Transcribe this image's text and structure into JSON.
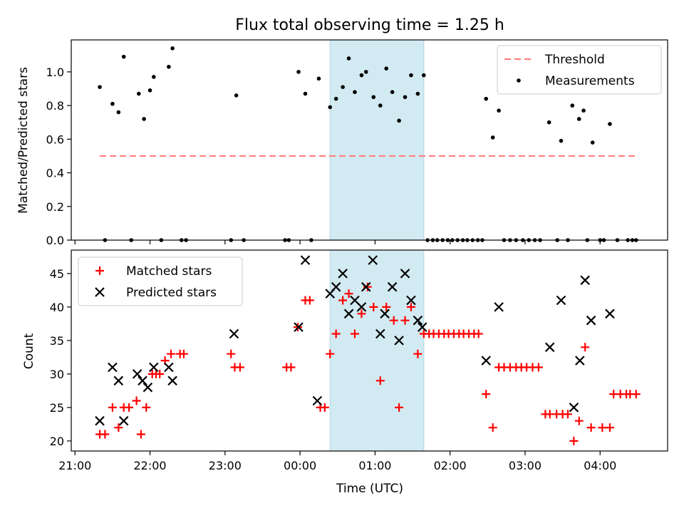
{
  "title": "Flux total observing time = 1.25 h",
  "x_axis": {
    "label": "Time (UTC)",
    "ticks": [
      "21:00",
      "22:00",
      "23:00",
      "00:00",
      "01:00",
      "02:00",
      "03:00",
      "04:00"
    ]
  },
  "colors": {
    "threshold": "#ff8080",
    "measurements": "#000000",
    "matched": "#ff0000",
    "predicted": "#000000",
    "observing_window": "#add8e6"
  },
  "chart_data": [
    {
      "type": "scatter",
      "ylabel": "Matched/Predicted stars",
      "xlim": [
        20.95,
        28.9
      ],
      "ylim": [
        0,
        1.19
      ],
      "yticks": [
        "0.0",
        "0.2",
        "0.4",
        "0.6",
        "0.8",
        "1.0"
      ],
      "grid": false,
      "legend_position": "top-right",
      "shaded_span": [
        24.4,
        25.65
      ],
      "series": [
        {
          "name": "Threshold",
          "style": "dashed-line",
          "x": [
            21.33,
            28.47
          ],
          "y": [
            0.5,
            0.5
          ]
        },
        {
          "name": "Measurements",
          "style": "dot",
          "x": [
            21.33,
            21.4,
            21.5,
            21.58,
            21.65,
            21.75,
            21.85,
            21.92,
            22.0,
            22.05,
            22.15,
            22.25,
            22.3,
            22.42,
            22.48,
            23.08,
            23.15,
            23.25,
            23.8,
            23.85,
            23.98,
            24.07,
            24.15,
            24.25,
            24.4,
            24.48,
            24.57,
            24.65,
            24.73,
            24.82,
            24.88,
            24.98,
            25.07,
            25.15,
            25.23,
            25.32,
            25.4,
            25.48,
            25.57,
            25.65,
            25.7,
            25.77,
            25.83,
            25.9,
            25.97,
            26.03,
            26.1,
            26.17,
            26.23,
            26.3,
            26.37,
            26.43,
            26.48,
            26.57,
            26.65,
            26.72,
            26.8,
            26.88,
            26.97,
            27.05,
            27.13,
            27.2,
            27.32,
            27.43,
            27.48,
            27.57,
            27.63,
            27.72,
            27.78,
            27.83,
            27.9,
            28.0,
            28.05,
            28.13,
            28.23,
            28.37,
            28.43,
            28.48
          ],
          "y": [
            0.91,
            0.0,
            0.81,
            0.76,
            1.09,
            0.0,
            0.87,
            0.72,
            0.89,
            0.97,
            0.0,
            1.03,
            1.14,
            0.0,
            0.0,
            0.0,
            0.86,
            0.0,
            0.0,
            0.0,
            1.0,
            0.87,
            0.0,
            0.96,
            0.79,
            0.84,
            0.91,
            1.08,
            0.88,
            0.98,
            1.0,
            0.85,
            0.8,
            1.02,
            0.88,
            0.71,
            0.85,
            0.98,
            0.87,
            0.98,
            0.0,
            0.0,
            0.0,
            0.0,
            0.0,
            0.0,
            0.0,
            0.0,
            0.0,
            0.0,
            0.0,
            0.0,
            0.84,
            0.61,
            0.77,
            0.0,
            0.0,
            0.0,
            0.0,
            0.0,
            0.0,
            0.0,
            0.7,
            0.0,
            0.59,
            0.0,
            0.8,
            0.72,
            0.77,
            0.0,
            0.58,
            0.0,
            0.0,
            0.69,
            0.0,
            0.0,
            0.0,
            0.0
          ]
        }
      ]
    },
    {
      "type": "scatter",
      "ylabel": "Count",
      "xlim": [
        20.95,
        28.9
      ],
      "ylim": [
        18.5,
        48.5
      ],
      "yticks": [
        "20",
        "25",
        "30",
        "35",
        "40",
        "45"
      ],
      "grid": false,
      "legend_position": "top-left",
      "shaded_span": [
        24.4,
        25.65
      ],
      "series": [
        {
          "name": "Matched stars",
          "marker": "+",
          "x": [
            21.33,
            21.4,
            21.5,
            21.58,
            21.65,
            21.72,
            21.82,
            21.88,
            21.95,
            22.03,
            22.08,
            22.13,
            22.2,
            22.28,
            22.4,
            22.45,
            23.08,
            23.13,
            23.2,
            23.82,
            23.88,
            23.97,
            24.07,
            24.13,
            24.27,
            24.33,
            24.4,
            24.48,
            24.57,
            24.65,
            24.73,
            24.82,
            24.9,
            24.98,
            25.07,
            25.15,
            25.25,
            25.32,
            25.4,
            25.48,
            25.57,
            25.65,
            25.72,
            25.78,
            25.85,
            25.92,
            25.98,
            26.05,
            26.12,
            26.18,
            26.25,
            26.32,
            26.38,
            26.48,
            26.57,
            26.65,
            26.72,
            26.8,
            26.88,
            26.95,
            27.02,
            27.1,
            27.18,
            27.27,
            27.33,
            27.42,
            27.5,
            27.57,
            27.65,
            27.72,
            27.8,
            27.88,
            28.03,
            28.13,
            28.18,
            28.27,
            28.35,
            28.4,
            28.48
          ],
          "y": [
            21,
            21,
            25,
            22,
            25,
            25,
            26,
            21,
            25,
            30,
            30,
            30,
            32,
            33,
            33,
            33,
            33,
            31,
            31,
            31,
            31,
            37,
            41,
            41,
            25,
            25,
            33,
            36,
            41,
            42,
            36,
            39,
            43,
            40,
            29,
            40,
            38,
            25,
            38,
            40,
            33,
            36,
            36,
            36,
            36,
            36,
            36,
            36,
            36,
            36,
            36,
            36,
            36,
            27,
            22,
            31,
            31,
            31,
            31,
            31,
            31,
            31,
            31,
            24,
            24,
            24,
            24,
            24,
            20,
            23,
            34,
            22,
            22,
            22,
            27,
            27,
            27,
            27,
            27
          ]
        },
        {
          "name": "Predicted stars",
          "marker": "x",
          "x": [
            21.33,
            21.5,
            21.58,
            21.65,
            21.83,
            21.9,
            21.97,
            22.05,
            22.25,
            22.3,
            23.12,
            23.98,
            24.07,
            24.23,
            24.4,
            24.48,
            24.57,
            24.65,
            24.73,
            24.82,
            24.88,
            24.97,
            25.07,
            25.13,
            25.23,
            25.32,
            25.4,
            25.48,
            25.57,
            25.63,
            26.48,
            26.65,
            27.33,
            27.48,
            27.65,
            27.73,
            27.8,
            27.88,
            28.13
          ],
          "y": [
            23,
            31,
            29,
            23,
            30,
            29,
            28,
            31,
            31,
            29,
            36,
            37,
            47,
            26,
            42,
            43,
            45,
            39,
            41,
            40,
            43,
            47,
            36,
            39,
            43,
            35,
            45,
            41,
            38,
            37,
            32,
            40,
            34,
            41,
            25,
            32,
            44,
            38,
            39
          ]
        }
      ]
    }
  ]
}
